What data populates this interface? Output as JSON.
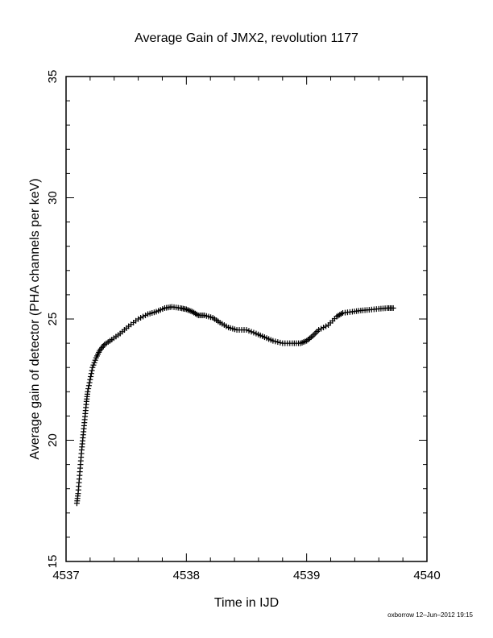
{
  "chart_data": {
    "type": "scatter",
    "title": "Average Gain of JMX2, revolution 1177",
    "xlabel": "Time in IJD",
    "ylabel": "Average gain of detector (PHA channels per keV)",
    "xlim": [
      4537,
      4540
    ],
    "ylim": [
      15,
      35
    ],
    "x_ticks": [
      "4537",
      "4538",
      "4539",
      "4540"
    ],
    "y_ticks": [
      "15",
      "20",
      "25",
      "30",
      "35"
    ],
    "marker": "+",
    "color": "#000000",
    "grid": false,
    "footer": "oxborrow 12–Jun–2012 19:15",
    "series": [
      {
        "points": [
          [
            4537.09,
            17.4
          ],
          [
            4537.1,
            17.8
          ],
          [
            4537.11,
            18.4
          ],
          [
            4537.12,
            19.0
          ],
          [
            4537.13,
            19.6
          ],
          [
            4537.14,
            20.1
          ],
          [
            4537.15,
            20.6
          ],
          [
            4537.16,
            21.1
          ],
          [
            4537.17,
            21.6
          ],
          [
            4537.18,
            22.0
          ],
          [
            4537.2,
            22.5
          ],
          [
            4537.22,
            23.0
          ],
          [
            4537.25,
            23.4
          ],
          [
            4537.28,
            23.7
          ],
          [
            4537.32,
            23.95
          ],
          [
            4537.38,
            24.15
          ],
          [
            4537.45,
            24.4
          ],
          [
            4537.52,
            24.7
          ],
          [
            4537.6,
            25.0
          ],
          [
            4537.68,
            25.2
          ],
          [
            4537.75,
            25.3
          ],
          [
            4537.82,
            25.45
          ],
          [
            4537.88,
            25.5
          ],
          [
            4537.95,
            25.45
          ],
          [
            4538.0,
            25.4
          ],
          [
            4538.05,
            25.3
          ],
          [
            4538.1,
            25.15
          ],
          [
            4538.15,
            25.15
          ],
          [
            4538.22,
            25.05
          ],
          [
            4538.28,
            24.85
          ],
          [
            4538.35,
            24.65
          ],
          [
            4538.42,
            24.55
          ],
          [
            4538.5,
            24.55
          ],
          [
            4538.58,
            24.4
          ],
          [
            4538.65,
            24.25
          ],
          [
            4538.72,
            24.1
          ],
          [
            4538.8,
            24.0
          ],
          [
            4538.88,
            24.0
          ],
          [
            4538.95,
            24.0
          ],
          [
            4539.0,
            24.1
          ],
          [
            4539.05,
            24.3
          ],
          [
            4539.1,
            24.55
          ],
          [
            4539.18,
            24.75
          ],
          [
            4539.25,
            25.1
          ],
          [
            4539.3,
            25.25
          ],
          [
            4539.38,
            25.3
          ],
          [
            4539.45,
            25.35
          ],
          [
            4539.52,
            25.38
          ],
          [
            4539.6,
            25.42
          ],
          [
            4539.67,
            25.45
          ],
          [
            4539.72,
            25.45
          ]
        ]
      }
    ]
  }
}
